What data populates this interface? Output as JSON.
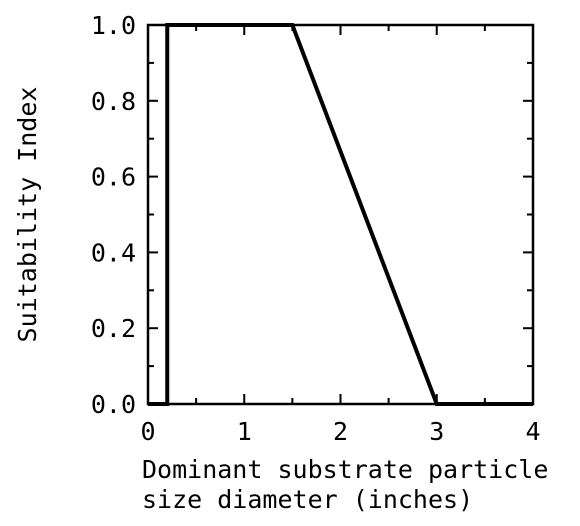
{
  "chart_data": {
    "type": "line",
    "title": "",
    "xlabel_lines": [
      "Dominant substrate particle",
      "size diameter (inches)"
    ],
    "ylabel": "Suitability Index",
    "xlim": [
      0,
      4
    ],
    "ylim": [
      0,
      1
    ],
    "x_ticks": [
      {
        "value": 0,
        "label": "0"
      },
      {
        "value": 1,
        "label": "1"
      },
      {
        "value": 2,
        "label": "2"
      },
      {
        "value": 3,
        "label": "3"
      },
      {
        "value": 4,
        "label": "4"
      }
    ],
    "y_ticks": [
      {
        "value": 0,
        "label": "0.0"
      },
      {
        "value": 0.2,
        "label": "0.2"
      },
      {
        "value": 0.4,
        "label": "0.4"
      },
      {
        "value": 0.6,
        "label": "0.6"
      },
      {
        "value": 0.8,
        "label": "0.8"
      },
      {
        "value": 1.0,
        "label": "1.0"
      }
    ],
    "minor_x_step": 0.5,
    "minor_y_step": 0.1,
    "grid": false,
    "series": [
      {
        "x": [
          0,
          0.2,
          0.2,
          1.5,
          3.0,
          4.0
        ],
        "y": [
          0,
          0,
          1.0,
          1.0,
          0,
          0
        ]
      }
    ]
  }
}
